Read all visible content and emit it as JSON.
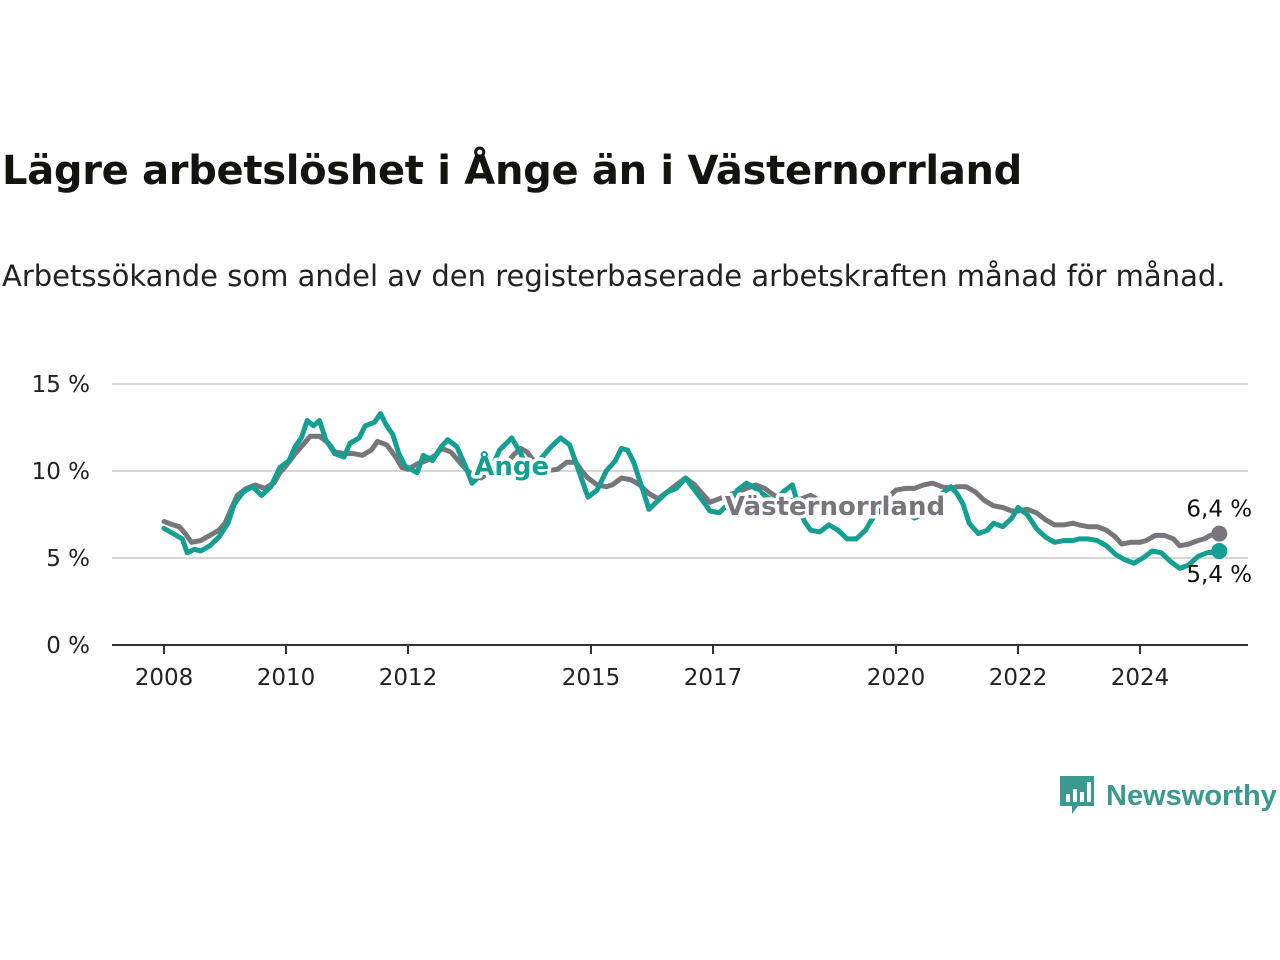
{
  "header": {
    "title": "Lägre arbetslöshet i Ånge än i Västernorrland",
    "subtitle": "Arbetssökande som andel av den registerbaserade arbetskraften månad för månad."
  },
  "brand": {
    "name": "Newsworthy",
    "icon": "bar-chart-speech-bubble-icon",
    "color": "#3a9a90"
  },
  "chart_data": {
    "type": "line",
    "ylim": [
      0,
      15
    ],
    "xlim": [
      2008,
      2025.8
    ],
    "y_ticks": [
      {
        "value": 0,
        "label": "0 %"
      },
      {
        "value": 5,
        "label": "5 %"
      },
      {
        "value": 10,
        "label": "10 %"
      },
      {
        "value": 15,
        "label": "15 %"
      }
    ],
    "x_ticks": [
      {
        "value": 2008,
        "label": "2008"
      },
      {
        "value": 2010,
        "label": "2010"
      },
      {
        "value": 2012,
        "label": "2012"
      },
      {
        "value": 2015,
        "label": "2015"
      },
      {
        "value": 2017,
        "label": "2017"
      },
      {
        "value": 2020,
        "label": "2020"
      },
      {
        "value": 2022,
        "label": "2022"
      },
      {
        "value": 2024,
        "label": "2024"
      }
    ],
    "grid": true,
    "legend": "inline labels",
    "series": [
      {
        "name": "Västernorrland",
        "color": "#77767b",
        "end_label": "6,4 %",
        "points": [
          [
            2008.0,
            7.1
          ],
          [
            2008.15,
            6.9
          ],
          [
            2008.25,
            6.8
          ],
          [
            2008.35,
            6.4
          ],
          [
            2008.45,
            5.9
          ],
          [
            2008.6,
            6.0
          ],
          [
            2008.75,
            6.3
          ],
          [
            2008.9,
            6.6
          ],
          [
            2009.0,
            7.0
          ],
          [
            2009.1,
            7.8
          ],
          [
            2009.2,
            8.6
          ],
          [
            2009.35,
            9.0
          ],
          [
            2009.5,
            9.2
          ],
          [
            2009.65,
            9.0
          ],
          [
            2009.8,
            9.3
          ],
          [
            2009.9,
            9.9
          ],
          [
            2010.0,
            10.3
          ],
          [
            2010.15,
            11.0
          ],
          [
            2010.3,
            11.6
          ],
          [
            2010.4,
            12.0
          ],
          [
            2010.55,
            12.0
          ],
          [
            2010.7,
            11.6
          ],
          [
            2010.8,
            11.1
          ],
          [
            2010.95,
            11.0
          ],
          [
            2011.1,
            11.0
          ],
          [
            2011.25,
            10.9
          ],
          [
            2011.4,
            11.2
          ],
          [
            2011.5,
            11.7
          ],
          [
            2011.65,
            11.5
          ],
          [
            2011.8,
            10.8
          ],
          [
            2011.9,
            10.2
          ],
          [
            2012.0,
            10.1
          ],
          [
            2012.15,
            10.4
          ],
          [
            2012.3,
            10.6
          ],
          [
            2012.45,
            10.9
          ],
          [
            2012.55,
            11.3
          ],
          [
            2012.7,
            11.1
          ],
          [
            2012.8,
            10.7
          ],
          [
            2012.95,
            10.1
          ],
          [
            2013.05,
            9.8
          ],
          [
            2013.2,
            9.6
          ],
          [
            2013.35,
            10.0
          ],
          [
            2013.5,
            10.3
          ],
          [
            2013.65,
            10.6
          ],
          [
            2013.75,
            11.0
          ],
          [
            2013.85,
            11.3
          ],
          [
            2013.95,
            11.1
          ],
          [
            2014.1,
            10.4
          ],
          [
            2014.25,
            10.0
          ],
          [
            2014.45,
            10.1
          ],
          [
            2014.6,
            10.5
          ],
          [
            2014.75,
            10.5
          ],
          [
            2014.85,
            10.0
          ],
          [
            2014.95,
            9.6
          ],
          [
            2015.1,
            9.2
          ],
          [
            2015.25,
            9.1
          ],
          [
            2015.35,
            9.2
          ],
          [
            2015.5,
            9.6
          ],
          [
            2015.65,
            9.5
          ],
          [
            2015.8,
            9.2
          ],
          [
            2015.95,
            8.7
          ],
          [
            2016.1,
            8.4
          ],
          [
            2016.25,
            8.8
          ],
          [
            2016.4,
            9.2
          ],
          [
            2016.55,
            9.6
          ],
          [
            2016.7,
            9.2
          ],
          [
            2016.85,
            8.6
          ],
          [
            2016.95,
            8.2
          ],
          [
            2017.1,
            8.4
          ],
          [
            2017.25,
            8.6
          ],
          [
            2017.4,
            8.8
          ],
          [
            2017.55,
            9.0
          ],
          [
            2017.7,
            9.2
          ],
          [
            2017.85,
            9.0
          ],
          [
            2018.0,
            8.6
          ],
          [
            2018.15,
            8.4
          ],
          [
            2018.3,
            8.3
          ],
          [
            2018.45,
            8.4
          ],
          [
            2018.6,
            8.6
          ],
          [
            2018.75,
            8.3
          ],
          [
            2018.9,
            8.1
          ],
          [
            2019.0,
            8.0
          ],
          [
            2019.15,
            8.1
          ],
          [
            2019.3,
            8.2
          ],
          [
            2019.45,
            8.1
          ],
          [
            2019.6,
            8.0
          ],
          [
            2019.75,
            8.2
          ],
          [
            2019.9,
            8.6
          ],
          [
            2020.0,
            8.9
          ],
          [
            2020.15,
            9.0
          ],
          [
            2020.3,
            9.0
          ],
          [
            2020.45,
            9.2
          ],
          [
            2020.6,
            9.3
          ],
          [
            2020.75,
            9.1
          ],
          [
            2020.9,
            9.0
          ],
          [
            2021.0,
            9.1
          ],
          [
            2021.15,
            9.1
          ],
          [
            2021.3,
            8.8
          ],
          [
            2021.45,
            8.3
          ],
          [
            2021.6,
            8.0
          ],
          [
            2021.75,
            7.9
          ],
          [
            2021.9,
            7.7
          ],
          [
            2022.0,
            7.7
          ],
          [
            2022.15,
            7.8
          ],
          [
            2022.3,
            7.6
          ],
          [
            2022.45,
            7.2
          ],
          [
            2022.6,
            6.9
          ],
          [
            2022.75,
            6.9
          ],
          [
            2022.9,
            7.0
          ],
          [
            2023.0,
            6.9
          ],
          [
            2023.15,
            6.8
          ],
          [
            2023.3,
            6.8
          ],
          [
            2023.45,
            6.6
          ],
          [
            2023.6,
            6.2
          ],
          [
            2023.7,
            5.8
          ],
          [
            2023.85,
            5.9
          ],
          [
            2024.0,
            5.9
          ],
          [
            2024.1,
            6.0
          ],
          [
            2024.25,
            6.3
          ],
          [
            2024.4,
            6.3
          ],
          [
            2024.55,
            6.1
          ],
          [
            2024.65,
            5.7
          ],
          [
            2024.8,
            5.8
          ],
          [
            2024.95,
            6.0
          ],
          [
            2025.05,
            6.1
          ],
          [
            2025.15,
            6.3
          ],
          [
            2025.3,
            6.4
          ]
        ]
      },
      {
        "name": "Ånge",
        "color": "#139f92",
        "end_label": "5,4 %",
        "points": [
          [
            2008.0,
            6.7
          ],
          [
            2008.15,
            6.4
          ],
          [
            2008.3,
            6.1
          ],
          [
            2008.38,
            5.3
          ],
          [
            2008.5,
            5.5
          ],
          [
            2008.6,
            5.4
          ],
          [
            2008.75,
            5.7
          ],
          [
            2008.9,
            6.2
          ],
          [
            2009.05,
            7.0
          ],
          [
            2009.15,
            8.1
          ],
          [
            2009.3,
            8.8
          ],
          [
            2009.45,
            9.1
          ],
          [
            2009.6,
            8.6
          ],
          [
            2009.75,
            9.1
          ],
          [
            2009.9,
            10.2
          ],
          [
            2010.05,
            10.6
          ],
          [
            2010.15,
            11.4
          ],
          [
            2010.25,
            11.9
          ],
          [
            2010.35,
            12.9
          ],
          [
            2010.45,
            12.6
          ],
          [
            2010.55,
            12.9
          ],
          [
            2010.65,
            11.8
          ],
          [
            2010.8,
            11.0
          ],
          [
            2010.95,
            10.8
          ],
          [
            2011.05,
            11.6
          ],
          [
            2011.2,
            11.9
          ],
          [
            2011.3,
            12.6
          ],
          [
            2011.45,
            12.8
          ],
          [
            2011.55,
            13.3
          ],
          [
            2011.65,
            12.6
          ],
          [
            2011.75,
            12.1
          ],
          [
            2011.85,
            11.0
          ],
          [
            2011.95,
            10.3
          ],
          [
            2012.05,
            10.1
          ],
          [
            2012.15,
            9.9
          ],
          [
            2012.25,
            10.9
          ],
          [
            2012.4,
            10.6
          ],
          [
            2012.55,
            11.4
          ],
          [
            2012.65,
            11.8
          ],
          [
            2012.8,
            11.4
          ],
          [
            2012.95,
            10.2
          ],
          [
            2013.05,
            9.3
          ],
          [
            2013.2,
            9.8
          ],
          [
            2013.35,
            10.0
          ],
          [
            2013.5,
            11.2
          ],
          [
            2013.7,
            11.9
          ],
          [
            2013.85,
            11.0
          ],
          [
            2014.0,
            9.7
          ],
          [
            2014.15,
            10.6
          ],
          [
            2014.35,
            11.4
          ],
          [
            2014.5,
            11.9
          ],
          [
            2014.65,
            11.5
          ],
          [
            2014.8,
            10.0
          ],
          [
            2014.95,
            8.5
          ],
          [
            2015.1,
            8.9
          ],
          [
            2015.25,
            10.0
          ],
          [
            2015.4,
            10.6
          ],
          [
            2015.5,
            11.3
          ],
          [
            2015.6,
            11.2
          ],
          [
            2015.7,
            10.5
          ],
          [
            2015.85,
            8.9
          ],
          [
            2015.95,
            7.8
          ],
          [
            2016.1,
            8.3
          ],
          [
            2016.25,
            8.8
          ],
          [
            2016.4,
            9.0
          ],
          [
            2016.55,
            9.6
          ],
          [
            2016.7,
            8.9
          ],
          [
            2016.85,
            8.2
          ],
          [
            2016.95,
            7.7
          ],
          [
            2017.1,
            7.6
          ],
          [
            2017.25,
            8.1
          ],
          [
            2017.4,
            8.9
          ],
          [
            2017.55,
            9.3
          ],
          [
            2017.7,
            9.0
          ],
          [
            2017.85,
            8.6
          ],
          [
            2018.0,
            8.2
          ],
          [
            2018.15,
            8.8
          ],
          [
            2018.3,
            9.2
          ],
          [
            2018.4,
            8.0
          ],
          [
            2018.5,
            7.1
          ],
          [
            2018.6,
            6.6
          ],
          [
            2018.75,
            6.5
          ],
          [
            2018.9,
            6.9
          ],
          [
            2019.05,
            6.6
          ],
          [
            2019.2,
            6.1
          ],
          [
            2019.35,
            6.1
          ],
          [
            2019.5,
            6.6
          ],
          [
            2019.6,
            7.2
          ],
          [
            2019.75,
            7.8
          ],
          [
            2019.9,
            8.1
          ],
          [
            2020.0,
            7.4
          ],
          [
            2020.15,
            7.6
          ],
          [
            2020.3,
            7.3
          ],
          [
            2020.45,
            7.5
          ],
          [
            2020.6,
            8.1
          ],
          [
            2020.75,
            8.7
          ],
          [
            2020.9,
            9.1
          ],
          [
            2021.0,
            8.7
          ],
          [
            2021.1,
            8.1
          ],
          [
            2021.2,
            7.0
          ],
          [
            2021.35,
            6.4
          ],
          [
            2021.5,
            6.6
          ],
          [
            2021.6,
            7.0
          ],
          [
            2021.75,
            6.8
          ],
          [
            2021.9,
            7.3
          ],
          [
            2022.0,
            7.9
          ],
          [
            2022.15,
            7.5
          ],
          [
            2022.3,
            6.7
          ],
          [
            2022.45,
            6.2
          ],
          [
            2022.6,
            5.9
          ],
          [
            2022.75,
            6.0
          ],
          [
            2022.9,
            6.0
          ],
          [
            2023.0,
            6.1
          ],
          [
            2023.15,
            6.1
          ],
          [
            2023.3,
            6.0
          ],
          [
            2023.45,
            5.7
          ],
          [
            2023.6,
            5.2
          ],
          [
            2023.75,
            4.9
          ],
          [
            2023.9,
            4.7
          ],
          [
            2024.05,
            5.0
          ],
          [
            2024.2,
            5.4
          ],
          [
            2024.35,
            5.3
          ],
          [
            2024.5,
            4.8
          ],
          [
            2024.65,
            4.4
          ],
          [
            2024.8,
            4.6
          ],
          [
            2024.95,
            5.1
          ],
          [
            2025.1,
            5.3
          ],
          [
            2025.3,
            5.4
          ]
        ]
      }
    ],
    "inline_labels": [
      {
        "series": "Ånge",
        "text": "Ånge",
        "x": 2013.7,
        "y": 10.3
      },
      {
        "series": "Västernorrland",
        "text": "Västernorrland",
        "x": 2019.0,
        "y": 8.0
      }
    ]
  }
}
